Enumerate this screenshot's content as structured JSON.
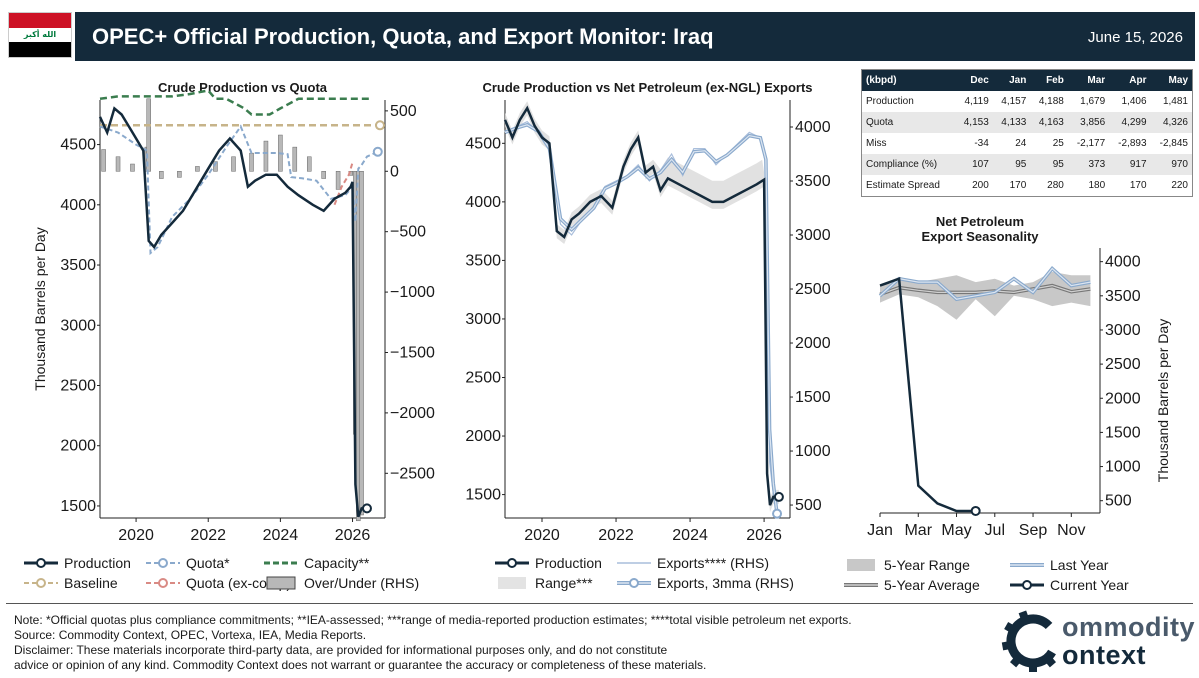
{
  "header": {
    "title": "OPEC+ Official Production, Quota, and Export Monitor: Iraq",
    "date": "June 15, 2026",
    "flag_text": "الله أكبر",
    "flag_colors": [
      "#cd1125",
      "#ffffff",
      "#000000"
    ],
    "band_color": "#142a3b"
  },
  "colors": {
    "production": "#142a3b",
    "quota": "#8aa9cc",
    "capacity": "#3b7d4f",
    "baseline": "#c7b48a",
    "quota_excomp": "#d98a84",
    "over_under": "#b8b8b8",
    "exports": "#a9bedb",
    "range": "#d9d9d9"
  },
  "chart1": {
    "title": "Crude Production vs Quota",
    "ylabel": "Thousand Barrels per Day",
    "y_ticks": [
      "1500",
      "2000",
      "2500",
      "3000",
      "3500",
      "4000",
      "4500"
    ],
    "y2_ticks": [
      "500",
      "0",
      "−500",
      "−1000",
      "−1500",
      "−2000",
      "−2500"
    ],
    "x_ticks": [
      "2020",
      "2022",
      "2024",
      "2026"
    ]
  },
  "chart2": {
    "title": "Crude Production vs Net Petroleum (ex-NGL) Exports",
    "y_ticks": [
      "1500",
      "2000",
      "2500",
      "3000",
      "3500",
      "4000",
      "4500"
    ],
    "y2_ticks": [
      "500",
      "1000",
      "1500",
      "2000",
      "2500",
      "3000",
      "3500",
      "4000"
    ],
    "x_ticks": [
      "2020",
      "2022",
      "2024",
      "2026"
    ]
  },
  "chart3": {
    "title_line1": "Net Petroleum",
    "title_line2": "Export Seasonality",
    "ylabel": "Thousand Barrels per Day",
    "y_ticks": [
      "500",
      "1000",
      "1500",
      "2000",
      "2500",
      "3000",
      "3500",
      "4000"
    ],
    "x_ticks": [
      "Jan",
      "Mar",
      "May",
      "Jul",
      "Sep",
      "Nov"
    ]
  },
  "legend1": {
    "production": "Production",
    "quota": "Quota*",
    "capacity": "Capacity**",
    "baseline": "Baseline",
    "quota_excomp": "Quota (ex-comp)",
    "over_under": "Over/Under (RHS)"
  },
  "legend2": {
    "production": "Production",
    "exports": "Exports**** (RHS)",
    "range": "Range***",
    "exports_3mma": "Exports, 3mma (RHS)"
  },
  "legend3": {
    "range5": "5-Year Range",
    "last_year": "Last Year",
    "avg5": "5-Year Average",
    "current_year": "Current Year"
  },
  "table": {
    "headers": [
      "(kbpd)",
      "Dec",
      "Jan",
      "Feb",
      "Mar",
      "Apr",
      "May"
    ],
    "rows": [
      [
        "Production",
        "4,119",
        "4,157",
        "4,188",
        "1,679",
        "1,406",
        "1,481"
      ],
      [
        "Quota",
        "4,153",
        "4,133",
        "4,163",
        "3,856",
        "4,299",
        "4,326"
      ],
      [
        "Miss",
        "-34",
        "24",
        "25",
        "-2,177",
        "-2,893",
        "-2,845"
      ],
      [
        "Compliance (%)",
        "107",
        "95",
        "95",
        "373",
        "917",
        "970"
      ],
      [
        "Estimate Spread",
        "200",
        "170",
        "280",
        "180",
        "170",
        "220"
      ]
    ]
  },
  "notes": {
    "line1": "Note: *Official quotas plus compliance commitments; **IEA-assessed; ***range of media-reported production estimates; ****total visible petroleum net exports.",
    "line2": "Source: Commodity Context, OPEC, Vortexa, IEA, Media Reports.",
    "line3": "Disclaimer: These materials incorporate third-party data, are provided for informational purposes only, and do not constitute",
    "line4": "advice or opinion of any kind. Commodity Context does not warrant or guarantee the accuracy or completeness of these materials."
  },
  "logo": {
    "word1": "ommodity",
    "word2": "ontext"
  },
  "chart_data": [
    {
      "type": "line",
      "title": "Crude Production vs Quota",
      "ylabel": "Thousand Barrels per Day",
      "ylim": [
        1400,
        4870
      ],
      "y2lim": [
        -2870,
        590
      ],
      "xlim": [
        2019.0,
        2026.9
      ],
      "series": [
        {
          "name": "Production",
          "x": [
            2019.0,
            2019.2,
            2019.4,
            2019.6,
            2019.8,
            2020.0,
            2020.2,
            2020.35,
            2020.5,
            2020.7,
            2021.0,
            2021.3,
            2021.6,
            2022.0,
            2022.3,
            2022.6,
            2022.9,
            2023.1,
            2023.3,
            2023.6,
            2023.9,
            2024.2,
            2024.5,
            2024.9,
            2025.2,
            2025.5,
            2025.8,
            2025.95,
            2026.0,
            2026.08,
            2026.16,
            2026.25,
            2026.4
          ],
          "y": [
            4730,
            4600,
            4800,
            4750,
            4650,
            4550,
            4450,
            3700,
            3650,
            3750,
            3850,
            3950,
            4100,
            4300,
            4450,
            4550,
            4450,
            4150,
            4200,
            4250,
            4250,
            4150,
            4080,
            4000,
            3950,
            4050,
            4100,
            4150,
            4190,
            1680,
            1410,
            1480,
            1480
          ]
        },
        {
          "name": "Quota*",
          "x": [
            2019.0,
            2019.5,
            2020.0,
            2020.3,
            2020.4,
            2020.6,
            2021.0,
            2021.5,
            2022.0,
            2022.5,
            2022.9,
            2023.2,
            2023.6,
            2023.9,
            2024.2,
            2024.3,
            2024.6,
            2025.0,
            2025.4,
            2025.8,
            2026.0,
            2026.08,
            2026.16,
            2026.25,
            2026.4,
            2026.7
          ],
          "y": [
            4650,
            4600,
            4500,
            4450,
            3600,
            3650,
            3900,
            4050,
            4250,
            4480,
            4650,
            4430,
            4430,
            4430,
            4420,
            4230,
            4220,
            4200,
            4050,
            4080,
            4150,
            3860,
            4300,
            4330,
            4400,
            4440
          ]
        },
        {
          "name": "Capacity**",
          "x": [
            2019.0,
            2019.5,
            2020.0,
            2021.0,
            2021.5,
            2022.0,
            2022.2,
            2022.5,
            2023.0,
            2023.2,
            2023.7,
            2024.0,
            2024.5,
            2025.0,
            2025.5,
            2026.0,
            2026.5
          ],
          "y": [
            4880,
            4900,
            4900,
            4900,
            4920,
            4950,
            4880,
            4880,
            4800,
            4750,
            4750,
            4800,
            4880,
            4880,
            4880,
            4880,
            4880
          ]
        },
        {
          "name": "Baseline",
          "x": [
            2019.0,
            2026.9
          ],
          "y": [
            4660,
            4660
          ]
        },
        {
          "name": "Quota (ex-comp)",
          "x": [
            2025.5,
            2025.7,
            2025.9,
            2026.0
          ],
          "y": [
            4000,
            4150,
            4250,
            4350
          ]
        },
        {
          "name": "Over/Under (RHS)",
          "type": "bar",
          "x": [
            2019.1,
            2019.5,
            2019.9,
            2020.3,
            2020.35,
            2020.7,
            2021.2,
            2021.7,
            2022.2,
            2022.7,
            2023.2,
            2023.6,
            2024.0,
            2024.4,
            2024.8,
            2025.2,
            2025.6,
            2025.95,
            2026.08,
            2026.16,
            2026.25
          ],
          "y": [
            180,
            120,
            60,
            200,
            600,
            -60,
            -50,
            40,
            80,
            120,
            150,
            250,
            300,
            200,
            120,
            -60,
            -150,
            -34,
            -2177,
            -2893,
            -2845
          ]
        }
      ]
    },
    {
      "type": "line",
      "title": "Crude Production vs Net Petroleum (ex-NGL) Exports",
      "ylim": [
        1300,
        4870
      ],
      "y2lim": [
        380,
        4250
      ],
      "xlim": [
        2019.0,
        2026.7
      ],
      "series": [
        {
          "name": "Production",
          "x": [
            2019.0,
            2019.2,
            2019.4,
            2019.6,
            2019.8,
            2020.0,
            2020.2,
            2020.4,
            2020.6,
            2020.8,
            2021.0,
            2021.3,
            2021.6,
            2021.9,
            2022.2,
            2022.4,
            2022.6,
            2022.8,
            2023.0,
            2023.2,
            2023.4,
            2023.7,
            2024.0,
            2024.3,
            2024.6,
            2024.9,
            2025.2,
            2025.5,
            2025.8,
            2025.95,
            2026.0,
            2026.08,
            2026.16,
            2026.25,
            2026.4
          ],
          "y": [
            4700,
            4550,
            4700,
            4800,
            4650,
            4550,
            4500,
            3750,
            3700,
            3850,
            3900,
            4000,
            4050,
            3950,
            4300,
            4450,
            4550,
            4250,
            4300,
            4100,
            4200,
            4150,
            4100,
            4050,
            4000,
            4000,
            4050,
            4100,
            4150,
            4180,
            4190,
            1680,
            1410,
            1480,
            1480
          ]
        },
        {
          "name": "Exports**** (RHS)",
          "x": [
            2019.0,
            2019.3,
            2019.6,
            2019.9,
            2020.2,
            2020.5,
            2020.8,
            2021.1,
            2021.4,
            2021.7,
            2022.0,
            2022.3,
            2022.6,
            2022.9,
            2023.2,
            2023.5,
            2023.8,
            2024.1,
            2024.4,
            2024.7,
            2025.0,
            2025.3,
            2025.6,
            2025.9,
            2026.05,
            2026.15,
            2026.25,
            2026.35
          ],
          "y": [
            3950,
            4000,
            4050,
            3950,
            3800,
            3100,
            3000,
            3150,
            3250,
            3450,
            3500,
            3550,
            3650,
            3500,
            3600,
            3750,
            3550,
            3800,
            3800,
            3650,
            3750,
            3850,
            3950,
            3900,
            3650,
            900,
            600,
            400
          ]
        },
        {
          "name": "Exports, 3mma (RHS)",
          "x": [
            2019.0,
            2019.3,
            2019.6,
            2019.9,
            2020.2,
            2020.5,
            2020.8,
            2021.1,
            2021.4,
            2021.7,
            2022.0,
            2022.3,
            2022.6,
            2022.9,
            2023.2,
            2023.5,
            2023.8,
            2024.1,
            2024.4,
            2024.7,
            2025.0,
            2025.3,
            2025.6,
            2025.9,
            2026.05,
            2026.15,
            2026.25,
            2026.35
          ],
          "y": [
            3950,
            3990,
            4020,
            3960,
            3800,
            3150,
            3050,
            3150,
            3250,
            3430,
            3480,
            3540,
            3620,
            3520,
            3580,
            3700,
            3580,
            3770,
            3780,
            3680,
            3740,
            3830,
            3920,
            3900,
            3700,
            1200,
            700,
            420
          ]
        }
      ]
    },
    {
      "type": "line",
      "title": "Net Petroleum Export Seasonality",
      "ylabel": "Thousand Barrels per Day",
      "ylim": [
        320,
        4200
      ],
      "xlim": [
        1,
        12.5
      ],
      "series": [
        {
          "name": "5-Year Range",
          "x": [
            1,
            2,
            3,
            4,
            5,
            6,
            7,
            8,
            9,
            10,
            11,
            12
          ],
          "y_low": [
            3400,
            3520,
            3480,
            3350,
            3150,
            3450,
            3200,
            3500,
            3450,
            3350,
            3400,
            3350
          ],
          "y_high": [
            3650,
            3780,
            3700,
            3750,
            3800,
            3700,
            3750,
            3650,
            3700,
            3850,
            3800,
            3800
          ]
        },
        {
          "name": "5-Year Average",
          "x": [
            1,
            2,
            3,
            4,
            5,
            6,
            7,
            8,
            9,
            10,
            11,
            12
          ],
          "y": [
            3520,
            3620,
            3580,
            3550,
            3550,
            3550,
            3570,
            3550,
            3600,
            3650,
            3560,
            3600
          ]
        },
        {
          "name": "Last Year",
          "x": [
            1,
            2,
            3,
            4,
            5,
            6,
            7,
            8,
            9,
            10,
            11,
            12
          ],
          "y": [
            3500,
            3750,
            3700,
            3700,
            3450,
            3500,
            3550,
            3750,
            3550,
            3900,
            3650,
            3700
          ]
        },
        {
          "name": "Current Year",
          "x": [
            1,
            2,
            3,
            4,
            5,
            6
          ],
          "y": [
            3650,
            3750,
            720,
            460,
            350,
            350
          ]
        }
      ]
    }
  ]
}
